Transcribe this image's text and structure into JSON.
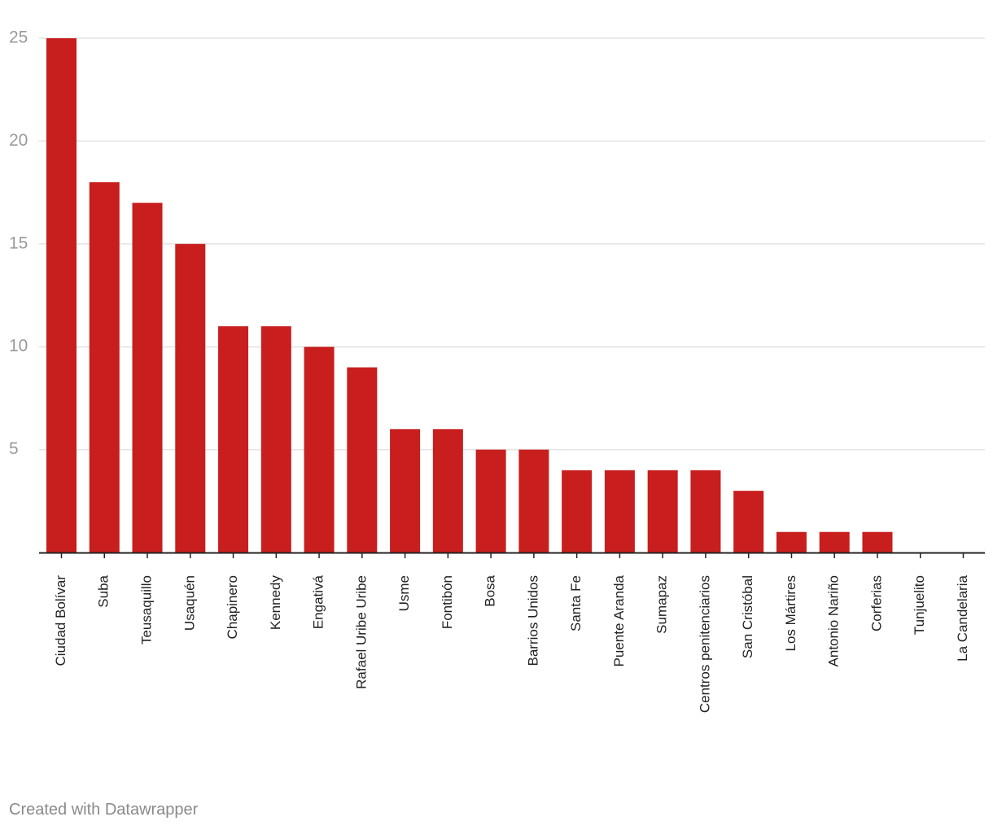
{
  "chart_data": {
    "type": "bar",
    "title": "",
    "xlabel": "",
    "ylabel": "",
    "ylim": [
      0,
      25
    ],
    "yticks": [
      5,
      10,
      15,
      20,
      25
    ],
    "bar_color": "#c81e1e",
    "gridline_color": "#e3e3e3",
    "categories": [
      "Ciudad Bolívar",
      "Suba",
      "Teusaquillo",
      "Usaquén",
      "Chapinero",
      "Kennedy",
      "Engativá",
      "Rafael Uribe Uribe",
      "Usme",
      "Fontibón",
      "Bosa",
      "Barrios Unidos",
      "Santa Fe",
      "Puente Aranda",
      "Sumapaz",
      "Centros penitenciarios",
      "San Cristóbal",
      "Los Mártires",
      "Antonio Nariño",
      "Corferias",
      "Tunjuelito",
      "La Candelaria"
    ],
    "values": [
      25,
      18,
      17,
      15,
      11,
      11,
      10,
      9,
      6,
      6,
      5,
      5,
      4,
      4,
      4,
      4,
      3,
      1,
      1,
      1,
      0,
      0
    ]
  },
  "footer": {
    "credit": "Created with Datawrapper"
  }
}
